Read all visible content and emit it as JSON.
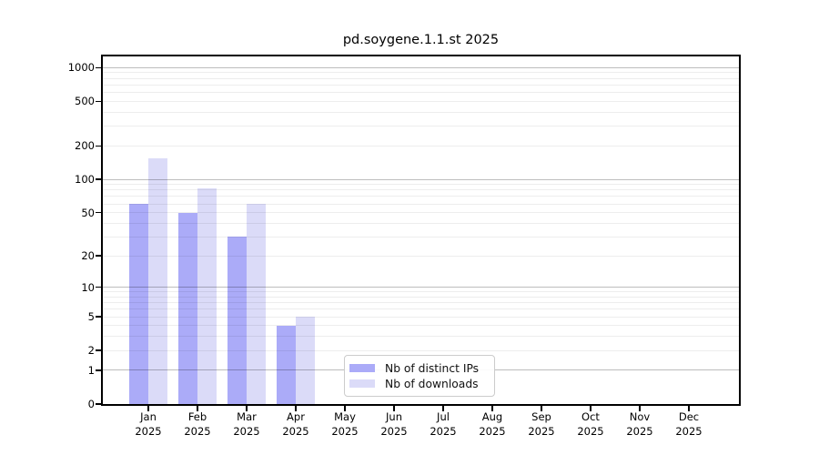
{
  "chart_data": {
    "type": "bar",
    "title": "pd.soygene.1.1.st 2025",
    "categories": [
      "Jan",
      "Feb",
      "Mar",
      "Apr",
      "May",
      "Jun",
      "Jul",
      "Aug",
      "Sep",
      "Oct",
      "Nov",
      "Dec"
    ],
    "category_year": "2025",
    "series": [
      {
        "name": "Nb of distinct IPs",
        "color": "#ababf8",
        "values": [
          60,
          50,
          30,
          4,
          null,
          null,
          null,
          null,
          null,
          null,
          null,
          null
        ]
      },
      {
        "name": "Nb of downloads",
        "color": "#dbdbf8",
        "values": [
          155,
          83,
          60,
          5,
          null,
          null,
          null,
          null,
          null,
          null,
          null,
          null
        ]
      }
    ],
    "y_axis": {
      "scale": "log1p",
      "ticks": [
        0,
        1,
        2,
        5,
        10,
        20,
        50,
        100,
        200,
        500,
        1000
      ],
      "max": 1260,
      "grid_major": [
        1,
        10,
        100,
        1000
      ],
      "grid_minor": [
        2,
        3,
        4,
        5,
        6,
        7,
        8,
        9,
        20,
        30,
        40,
        50,
        60,
        70,
        80,
        90,
        200,
        300,
        400,
        500,
        600,
        700,
        800,
        900
      ]
    },
    "xlabel": "",
    "ylabel": "",
    "grid": true,
    "legend_position": "lower-center"
  }
}
